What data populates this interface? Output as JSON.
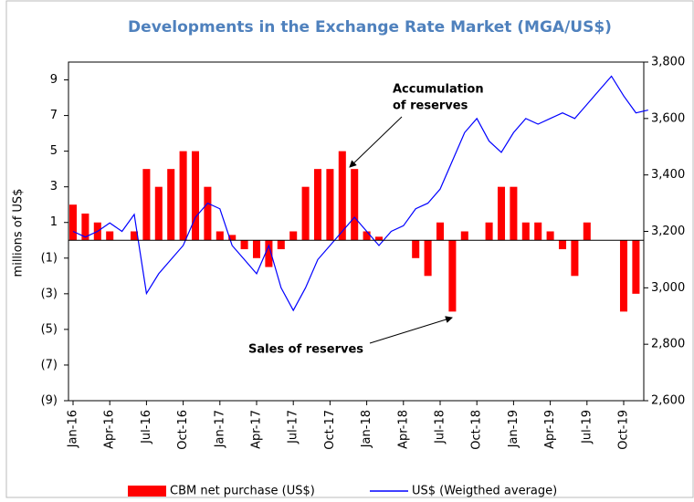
{
  "chart_data": {
    "type": "bar-line",
    "title": "Developments in the Exchange Rate Market (MGA/US$)",
    "y_label": "millions of US$",
    "categories": [
      "Jan-16",
      null,
      null,
      "Apr-16",
      null,
      null,
      "Jul-16",
      null,
      null,
      "Oct-16",
      null,
      null,
      "Jan-17",
      null,
      null,
      "Apr-17",
      null,
      null,
      "Jul-17",
      null,
      null,
      "Oct-17",
      null,
      null,
      "Jan-18",
      null,
      null,
      "Apr-18",
      null,
      null,
      "Jul-18",
      null,
      null,
      "Oct-18",
      null,
      null,
      "Jan-19",
      null,
      null,
      "Apr-19",
      null,
      null,
      "Jul-19",
      null,
      null,
      "Oct-19",
      null,
      null
    ],
    "series": [
      {
        "name": "CBM net purchase (US$)",
        "color": "#ff0000",
        "axis": "y",
        "values": [
          2,
          1.5,
          1,
          0.5,
          0,
          0.5,
          4,
          3,
          4,
          5,
          5,
          3,
          0.5,
          0.3,
          -0.5,
          -1,
          -1.5,
          -0.5,
          0.5,
          3,
          4,
          4,
          5,
          4,
          0.5,
          0.2,
          0,
          0,
          -1,
          -2,
          1,
          -4,
          0.5,
          0,
          1,
          3,
          3,
          1,
          1,
          0.5,
          -0.5,
          -2,
          1,
          0,
          0,
          -4,
          -3,
          0
        ]
      },
      {
        "name": "US$ (Weigthed average)",
        "color": "#0000ff",
        "axis": "y2",
        "values": [
          3200,
          3180,
          3200,
          3230,
          3200,
          3260,
          2980,
          3050,
          3100,
          3150,
          3250,
          3300,
          3280,
          3150,
          3100,
          3050,
          3150,
          3000,
          2920,
          3000,
          3100,
          3150,
          3200,
          3250,
          3200,
          3150,
          3200,
          3220,
          3280,
          3300,
          3350,
          3450,
          3550,
          3600,
          3520,
          3480,
          3550,
          3600,
          3580,
          3600,
          3620,
          3600,
          3650,
          3700,
          3750,
          3680,
          3620,
          3630
        ]
      }
    ],
    "ylim": [
      -9,
      10
    ],
    "yticks": [
      9,
      7,
      5,
      3,
      1,
      {
        "value": -1,
        "label": "(1)"
      },
      {
        "value": -3,
        "label": "(3)"
      },
      {
        "value": -5,
        "label": "(5)"
      },
      {
        "value": -7,
        "label": "(7)"
      },
      {
        "value": -9,
        "label": "(9)"
      }
    ],
    "y2lim": [
      2600,
      3800
    ],
    "y2ticks": [
      {
        "value": 2600,
        "label": "2,600"
      },
      {
        "value": 2800,
        "label": "2,800"
      },
      {
        "value": 3000,
        "label": "3,000"
      },
      {
        "value": 3200,
        "label": "3,200"
      },
      {
        "value": 3400,
        "label": "3,400"
      },
      {
        "value": 3600,
        "label": "3,600"
      },
      {
        "value": 3800,
        "label": "3,800"
      }
    ],
    "annotations": [
      {
        "lines": [
          "Accumulation",
          "of reserves"
        ]
      },
      {
        "lines": [
          "Sales of reserves"
        ]
      }
    ],
    "legend": "bottom"
  }
}
